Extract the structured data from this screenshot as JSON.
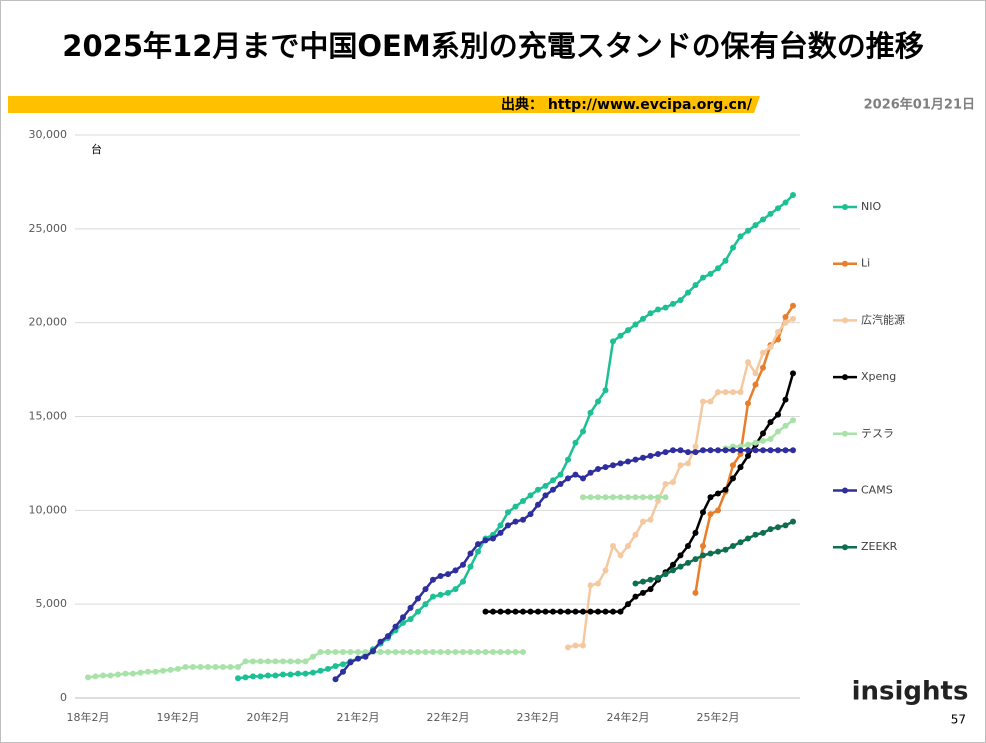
{
  "title": "2025年12月まで中国OEM系別の充電スタンドの保有台数の推移",
  "source": "出典： http://www.evcipa.org.cn/",
  "date": "2026年01月21日",
  "logo": "insights",
  "page_number": 57,
  "chart_data": {
    "type": "line",
    "y_unit_label": "台",
    "categories": [
      "18年2月",
      null,
      null,
      null,
      null,
      null,
      null,
      null,
      null,
      null,
      null,
      null,
      "19年2月",
      null,
      null,
      null,
      null,
      null,
      null,
      null,
      null,
      null,
      null,
      null,
      "20年2月",
      null,
      null,
      null,
      null,
      null,
      null,
      null,
      null,
      null,
      null,
      null,
      "21年2月",
      null,
      null,
      null,
      null,
      null,
      null,
      null,
      null,
      null,
      null,
      null,
      "22年2月",
      null,
      null,
      null,
      null,
      null,
      null,
      null,
      null,
      null,
      null,
      null,
      "23年2月",
      null,
      null,
      null,
      null,
      null,
      null,
      null,
      null,
      null,
      null,
      null,
      "24年2月",
      null,
      null,
      null,
      null,
      null,
      null,
      null,
      null,
      null,
      null,
      null,
      "25年2月",
      null,
      null,
      null,
      null,
      null,
      null,
      null,
      null,
      null,
      null
    ],
    "ylim": [
      0,
      30000
    ],
    "yticks": [
      0,
      {
        "value": 5000,
        "label": "5,000"
      },
      {
        "value": 10000,
        "label": "10,000"
      },
      {
        "value": 15000,
        "label": "15,000"
      },
      {
        "value": 20000,
        "label": "20,000"
      },
      {
        "value": 25000,
        "label": "25,000"
      },
      {
        "value": 30000,
        "label": "30,000"
      }
    ],
    "grid": true,
    "legend": "right",
    "series": [
      {
        "name": "NIO",
        "color": "#1dbf94",
        "values": [
          null,
          null,
          null,
          null,
          null,
          null,
          null,
          null,
          null,
          null,
          null,
          null,
          null,
          null,
          null,
          null,
          null,
          null,
          null,
          null,
          1050,
          1100,
          1150,
          1150,
          1200,
          1200,
          1250,
          1250,
          1300,
          1300,
          1350,
          1450,
          1550,
          1700,
          1800,
          1950,
          2100,
          2300,
          2600,
          2900,
          3200,
          3600,
          4000,
          4200,
          4600,
          5000,
          5400,
          5500,
          5600,
          5800,
          6200,
          7000,
          7800,
          8500,
          8700,
          9200,
          9900,
          10200,
          10500,
          10800,
          11100,
          11300,
          11600,
          11900,
          12700,
          13600,
          14200,
          15200,
          15800,
          16400,
          19000,
          19300,
          19600,
          19900,
          20200,
          20500,
          20700,
          20800,
          21000,
          21200,
          21600,
          22000,
          22400,
          22600,
          22900,
          23300,
          24000,
          24600,
          24900,
          25200,
          25500,
          25800,
          26100,
          26400,
          26800
        ]
      },
      {
        "name": "Li",
        "color": "#e87d2a",
        "values": [
          null,
          null,
          null,
          null,
          null,
          null,
          null,
          null,
          null,
          null,
          null,
          null,
          null,
          null,
          null,
          null,
          null,
          null,
          null,
          null,
          null,
          null,
          null,
          null,
          null,
          null,
          null,
          null,
          null,
          null,
          null,
          null,
          null,
          null,
          null,
          null,
          null,
          null,
          null,
          null,
          null,
          null,
          null,
          null,
          null,
          null,
          null,
          null,
          null,
          null,
          null,
          null,
          null,
          null,
          null,
          null,
          null,
          null,
          null,
          null,
          null,
          null,
          null,
          null,
          null,
          null,
          null,
          null,
          null,
          null,
          null,
          null,
          null,
          null,
          null,
          null,
          null,
          null,
          null,
          null,
          null,
          5600,
          8100,
          9800,
          10000,
          11000,
          12400,
          13000,
          15700,
          16700,
          17600,
          18800,
          19100,
          20300,
          20900
        ]
      },
      {
        "name": "広汽能源",
        "color": "#f5c9a0",
        "values": [
          null,
          null,
          null,
          null,
          null,
          null,
          null,
          null,
          null,
          null,
          null,
          null,
          null,
          null,
          null,
          null,
          null,
          null,
          null,
          null,
          null,
          null,
          null,
          null,
          null,
          null,
          null,
          null,
          null,
          null,
          null,
          null,
          null,
          null,
          null,
          null,
          null,
          null,
          null,
          null,
          null,
          null,
          null,
          null,
          null,
          null,
          null,
          null,
          null,
          null,
          null,
          null,
          null,
          null,
          null,
          null,
          null,
          null,
          null,
          null,
          null,
          null,
          null,
          null,
          2700,
          2800,
          2800,
          6000,
          6100,
          6800,
          8100,
          7600,
          8100,
          8700,
          9400,
          9500,
          10500,
          11400,
          11500,
          12400,
          12500,
          13400,
          15800,
          15800,
          16300,
          16300,
          16300,
          16300,
          17900,
          17300,
          18400,
          18700,
          19500,
          20000,
          20200
        ]
      },
      {
        "name": "Xpeng",
        "color": "#000000",
        "values": [
          null,
          null,
          null,
          null,
          null,
          null,
          null,
          null,
          null,
          null,
          null,
          null,
          null,
          null,
          null,
          null,
          null,
          null,
          null,
          null,
          null,
          null,
          null,
          null,
          null,
          null,
          null,
          null,
          null,
          null,
          null,
          null,
          null,
          null,
          null,
          null,
          null,
          null,
          null,
          null,
          null,
          null,
          null,
          null,
          null,
          null,
          null,
          null,
          null,
          null,
          null,
          null,
          null,
          4600,
          4600,
          4600,
          4600,
          4600,
          4600,
          4600,
          4600,
          4600,
          4600,
          4600,
          4600,
          4600,
          4600,
          4600,
          4600,
          4600,
          4600,
          4600,
          5000,
          5400,
          5600,
          5800,
          6300,
          6700,
          7100,
          7600,
          8100,
          8800,
          9900,
          10700,
          10900,
          11100,
          11700,
          12300,
          12900,
          13500,
          14100,
          14700,
          15100,
          15900,
          17300
        ]
      },
      {
        "name": "テスラ",
        "color": "#a8e2a8",
        "values": [
          1100,
          1150,
          1200,
          1200,
          1250,
          1300,
          1300,
          1350,
          1400,
          1400,
          1450,
          1500,
          1550,
          1650,
          1650,
          1650,
          1650,
          1650,
          1650,
          1650,
          1650,
          1950,
          1950,
          1950,
          1950,
          1950,
          1950,
          1950,
          1950,
          1950,
          2200,
          2450,
          2450,
          2450,
          2450,
          2450,
          2450,
          2450,
          2450,
          2450,
          2450,
          2450,
          2450,
          2450,
          2450,
          2450,
          2450,
          2450,
          2450,
          2450,
          2450,
          2450,
          2450,
          2450,
          2450,
          2450,
          2450,
          2450,
          2450,
          null,
          null,
          null,
          null,
          null,
          null,
          null,
          10700,
          10700,
          10700,
          10700,
          10700,
          10700,
          10700,
          10700,
          10700,
          10700,
          10700,
          10700,
          null,
          null,
          null,
          null,
          null,
          null,
          null,
          13300,
          13400,
          13400,
          13500,
          13600,
          13700,
          13800,
          14200,
          14500,
          14800
        ]
      },
      {
        "name": "CAMS",
        "color": "#2e2e9e",
        "values": [
          null,
          null,
          null,
          null,
          null,
          null,
          null,
          null,
          null,
          null,
          null,
          null,
          null,
          null,
          null,
          null,
          null,
          null,
          null,
          null,
          null,
          null,
          null,
          null,
          null,
          null,
          null,
          null,
          null,
          null,
          null,
          null,
          null,
          1000,
          1400,
          1900,
          2100,
          2200,
          2500,
          3000,
          3300,
          3800,
          4300,
          4800,
          5300,
          5800,
          6300,
          6500,
          6600,
          6800,
          7100,
          7700,
          8200,
          8400,
          8500,
          8800,
          9200,
          9400,
          9500,
          9800,
          10300,
          10800,
          11100,
          11400,
          11700,
          11900,
          11700,
          12000,
          12200,
          12300,
          12400,
          12500,
          12600,
          12700,
          12800,
          12900,
          13000,
          13100,
          13200,
          13200,
          13100,
          13100,
          13200,
          13200,
          13200,
          13200,
          13200,
          13200,
          13200,
          13200,
          13200,
          13200,
          13200,
          13200,
          13200
        ]
      },
      {
        "name": "ZEEKR",
        "color": "#0e6e50",
        "values": [
          null,
          null,
          null,
          null,
          null,
          null,
          null,
          null,
          null,
          null,
          null,
          null,
          null,
          null,
          null,
          null,
          null,
          null,
          null,
          null,
          null,
          null,
          null,
          null,
          null,
          null,
          null,
          null,
          null,
          null,
          null,
          null,
          null,
          null,
          null,
          null,
          null,
          null,
          null,
          null,
          null,
          null,
          null,
          null,
          null,
          null,
          null,
          null,
          null,
          null,
          null,
          null,
          null,
          null,
          null,
          null,
          null,
          null,
          null,
          null,
          null,
          null,
          null,
          null,
          null,
          null,
          null,
          null,
          null,
          null,
          null,
          null,
          null,
          6100,
          6200,
          6300,
          6400,
          6600,
          6800,
          7000,
          7200,
          7400,
          7600,
          7700,
          7800,
          7900,
          8100,
          8300,
          8500,
          8700,
          8800,
          9000,
          9100,
          9200,
          9400
        ]
      }
    ]
  }
}
